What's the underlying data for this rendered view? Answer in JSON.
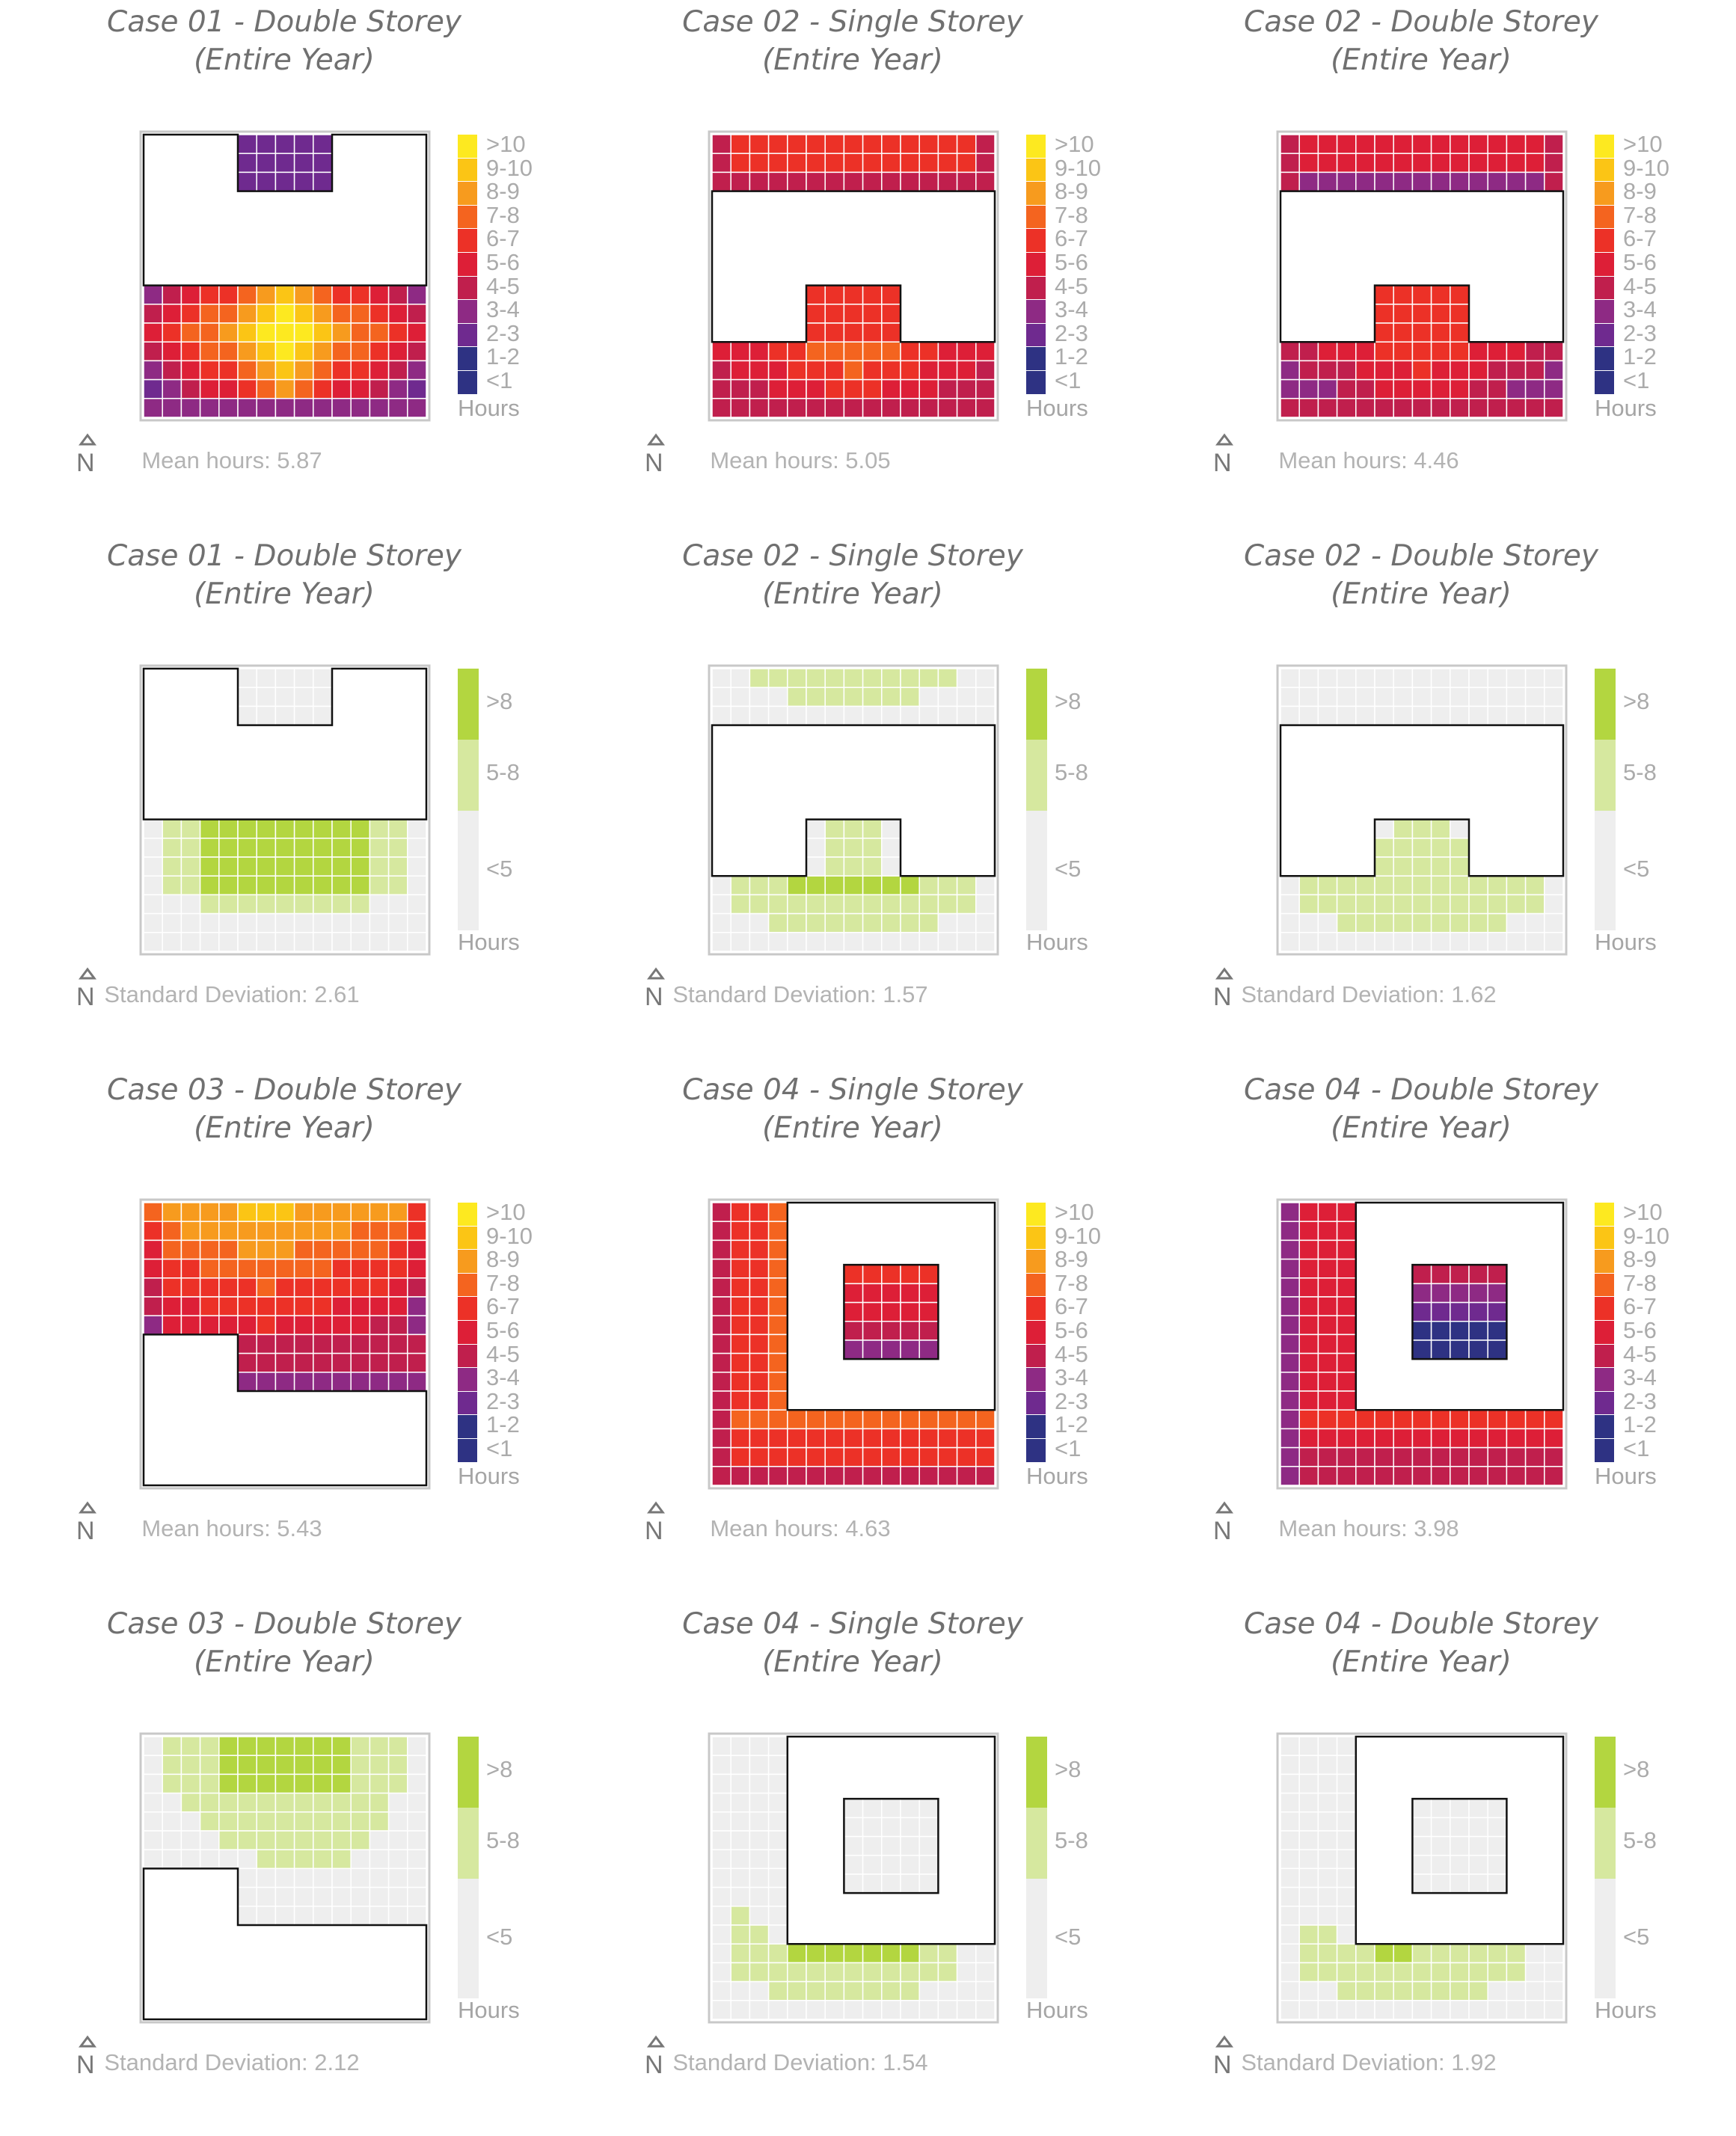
{
  "north_label": "N",
  "colors": {
    "hours_scale": [
      "#2e3283",
      "#6f2a8f",
      "#8e2a84",
      "#c01f4d",
      "#dd1f37",
      "#ec3127",
      "#f4641f",
      "#f79b1e",
      "#fbc515",
      "#fde920"
    ],
    "deviation_scale": {
      "low": "#eeeeee",
      "mid": "#d6e89f",
      "high": "#b3d640"
    },
    "grid_line": "#ffffff",
    "building_fill": "#ffffff",
    "building_stroke": "#111111"
  },
  "hours_legend": {
    "labels": [
      ">10",
      "9-10",
      "8-9",
      "7-8",
      "6-7",
      "5-6",
      "4-5",
      "3-4",
      "2-3",
      "1-2",
      "<1"
    ],
    "unit": "Hours"
  },
  "deviation_legend": {
    "labels": [
      ">8",
      "5-8",
      "<5"
    ],
    "unit": "Hours"
  },
  "panels": [
    {
      "title1": "Case 01 - Double Storey",
      "title2": "(Entire Year)",
      "kind": "mean",
      "footer": "Mean hours: 5.87",
      "plan": "c1"
    },
    {
      "title1": "Case 02 - Single Storey",
      "title2": "(Entire Year)",
      "kind": "mean",
      "footer": "Mean hours: 5.05",
      "plan": "c2s"
    },
    {
      "title1": "Case 02 - Double Storey",
      "title2": "(Entire Year)",
      "kind": "mean",
      "footer": "Mean hours: 4.46",
      "plan": "c2d"
    },
    {
      "title1": "Case 01 - Double Storey",
      "title2": "(Entire Year)",
      "kind": "sd",
      "footer": "Standard Deviation: 2.61",
      "plan": "c1"
    },
    {
      "title1": "Case 02 - Single Storey",
      "title2": "(Entire Year)",
      "kind": "sd",
      "footer": "Standard Deviation: 1.57",
      "plan": "c2s"
    },
    {
      "title1": "Case 02 - Double Storey",
      "title2": "(Entire Year)",
      "kind": "sd",
      "footer": "Standard Deviation: 1.62",
      "plan": "c2d"
    },
    {
      "title1": "Case 03 - Double Storey",
      "title2": "(Entire Year)",
      "kind": "mean",
      "footer": "Mean hours: 5.43",
      "plan": "c3"
    },
    {
      "title1": "Case 04 - Single Storey",
      "title2": "(Entire Year)",
      "kind": "mean",
      "footer": "Mean hours: 4.63",
      "plan": "c4s"
    },
    {
      "title1": "Case 04 - Double Storey",
      "title2": "(Entire Year)",
      "kind": "mean",
      "footer": "Mean hours: 3.98",
      "plan": "c4d"
    },
    {
      "title1": "Case 03 - Double Storey",
      "title2": "(Entire Year)",
      "kind": "sd",
      "footer": "Standard Deviation: 2.12",
      "plan": "c3"
    },
    {
      "title1": "Case 04 - Single Storey",
      "title2": "(Entire Year)",
      "kind": "sd",
      "footer": "Standard Deviation: 1.54",
      "plan": "c4s"
    },
    {
      "title1": "Case 04 - Double Storey",
      "title2": "(Entire Year)",
      "kind": "sd",
      "footer": "Standard Deviation: 1.92",
      "plan": "c4d"
    }
  ]
}
